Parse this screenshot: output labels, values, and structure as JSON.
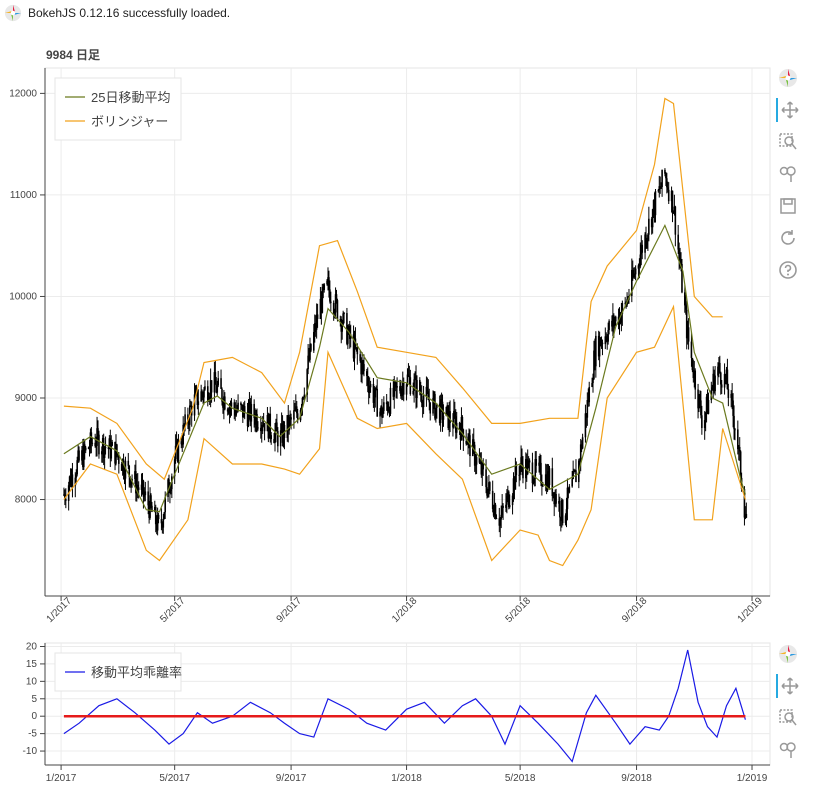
{
  "status": {
    "message": "BokehJS 0.12.16 successfully loaded."
  },
  "colors": {
    "ma": "#6b7a1f",
    "bollinger": "#f2a21c",
    "candle": "#000000",
    "deviation": "#1a1ae6",
    "zero": "#e61a1a"
  },
  "toolbar_main": [
    "bokeh-logo-icon",
    "pan-icon",
    "box-zoom-icon",
    "wheel-zoom-icon",
    "save-icon",
    "reset-icon",
    "help-icon"
  ],
  "toolbar_sub": [
    "bokeh-logo-icon",
    "pan-icon",
    "box-zoom-icon",
    "wheel-zoom-icon"
  ],
  "chart_data": [
    {
      "type": "line",
      "title": "9984 日足",
      "x_axis": "datetime",
      "xlim": [
        "2016-12-15",
        "2019-01-20"
      ],
      "ylim": [
        7050,
        12250
      ],
      "yticks": [
        8000,
        9000,
        10000,
        11000,
        12000
      ],
      "xticks": [
        "1/2017",
        "5/2017",
        "9/2017",
        "1/2018",
        "5/2018",
        "9/2018",
        "1/2019"
      ],
      "legend_position": "top-left",
      "series": [
        {
          "name": "25日移動平均",
          "kind": "moving-average",
          "points": [
            [
              "2017-01-04",
              8450
            ],
            [
              "2017-02-01",
              8620
            ],
            [
              "2017-03-01",
              8480
            ],
            [
              "2017-04-01",
              7900
            ],
            [
              "2017-04-15",
              7880
            ],
            [
              "2017-05-01",
              8250
            ],
            [
              "2017-06-01",
              8950
            ],
            [
              "2017-06-15",
              9020
            ],
            [
              "2017-07-01",
              8900
            ],
            [
              "2017-08-01",
              8800
            ],
            [
              "2017-08-20",
              8620
            ],
            [
              "2017-09-10",
              8800
            ],
            [
              "2017-10-01",
              9500
            ],
            [
              "2017-10-10",
              9880
            ],
            [
              "2017-11-01",
              9650
            ],
            [
              "2017-12-01",
              9200
            ],
            [
              "2018-01-01",
              9150
            ],
            [
              "2018-02-01",
              8950
            ],
            [
              "2018-03-01",
              8650
            ],
            [
              "2018-04-01",
              8250
            ],
            [
              "2018-05-01",
              8350
            ],
            [
              "2018-06-01",
              8100
            ],
            [
              "2018-07-01",
              8250
            ],
            [
              "2018-07-20",
              8900
            ],
            [
              "2018-08-10",
              9700
            ],
            [
              "2018-09-01",
              10150
            ],
            [
              "2018-10-01",
              10700
            ],
            [
              "2018-10-20",
              10250
            ],
            [
              "2018-11-01",
              9450
            ],
            [
              "2018-11-20",
              9000
            ],
            [
              "2018-12-01",
              8950
            ],
            [
              "2018-12-20",
              8200
            ],
            [
              "2018-12-25",
              8050
            ]
          ]
        },
        {
          "name": "ボリンジャー",
          "kind": "bollinger-upper",
          "points": [
            [
              "2017-01-04",
              8920
            ],
            [
              "2017-02-01",
              8900
            ],
            [
              "2017-03-01",
              8750
            ],
            [
              "2017-04-01",
              8350
            ],
            [
              "2017-04-20",
              8200
            ],
            [
              "2017-05-20",
              8900
            ],
            [
              "2017-06-01",
              9350
            ],
            [
              "2017-07-01",
              9400
            ],
            [
              "2017-08-01",
              9250
            ],
            [
              "2017-08-25",
              8950
            ],
            [
              "2017-09-10",
              9450
            ],
            [
              "2017-10-01",
              10500
            ],
            [
              "2017-10-20",
              10550
            ],
            [
              "2017-11-10",
              10050
            ],
            [
              "2017-12-01",
              9500
            ],
            [
              "2018-01-01",
              9450
            ],
            [
              "2018-02-01",
              9400
            ],
            [
              "2018-03-01",
              9100
            ],
            [
              "2018-04-01",
              8750
            ],
            [
              "2018-05-01",
              8750
            ],
            [
              "2018-06-01",
              8800
            ],
            [
              "2018-07-01",
              8800
            ],
            [
              "2018-07-15",
              9950
            ],
            [
              "2018-08-01",
              10300
            ],
            [
              "2018-09-01",
              10650
            ],
            [
              "2018-09-20",
              11300
            ],
            [
              "2018-10-01",
              11950
            ],
            [
              "2018-10-10",
              11900
            ],
            [
              "2018-11-01",
              10000
            ],
            [
              "2018-11-20",
              9800
            ],
            [
              "2018-12-01",
              9800
            ]
          ]
        },
        {
          "name": "ボリンジャー",
          "kind": "bollinger-lower",
          "points": [
            [
              "2017-01-04",
              8000
            ],
            [
              "2017-02-01",
              8350
            ],
            [
              "2017-03-01",
              8250
            ],
            [
              "2017-04-01",
              7500
            ],
            [
              "2017-04-15",
              7400
            ],
            [
              "2017-05-15",
              7800
            ],
            [
              "2017-06-01",
              8600
            ],
            [
              "2017-07-01",
              8350
            ],
            [
              "2017-08-01",
              8350
            ],
            [
              "2017-08-25",
              8300
            ],
            [
              "2017-09-10",
              8250
            ],
            [
              "2017-10-01",
              8500
            ],
            [
              "2017-10-10",
              9450
            ],
            [
              "2017-11-10",
              8800
            ],
            [
              "2017-12-01",
              8700
            ],
            [
              "2018-01-01",
              8750
            ],
            [
              "2018-02-01",
              8450
            ],
            [
              "2018-03-01",
              8200
            ],
            [
              "2018-04-01",
              7400
            ],
            [
              "2018-05-01",
              7700
            ],
            [
              "2018-05-20",
              7650
            ],
            [
              "2018-06-01",
              7400
            ],
            [
              "2018-06-15",
              7350
            ],
            [
              "2018-07-01",
              7600
            ],
            [
              "2018-07-15",
              7900
            ],
            [
              "2018-08-01",
              9000
            ],
            [
              "2018-09-01",
              9450
            ],
            [
              "2018-09-20",
              9500
            ],
            [
              "2018-10-10",
              9900
            ],
            [
              "2018-11-01",
              7800
            ],
            [
              "2018-11-20",
              7800
            ],
            [
              "2018-12-01",
              8700
            ],
            [
              "2018-12-25",
              8000
            ]
          ]
        }
      ],
      "candles": {
        "start": "2017-01-04",
        "end": "2018-12-26",
        "anchors": [
          [
            "2017-01-04",
            8050
          ],
          [
            "2017-01-15",
            8300
          ],
          [
            "2017-02-05",
            8600
          ],
          [
            "2017-03-01",
            8450
          ],
          [
            "2017-04-01",
            8000
          ],
          [
            "2017-04-15",
            7700
          ],
          [
            "2017-05-01",
            8400
          ],
          [
            "2017-05-20",
            8950
          ],
          [
            "2017-06-10",
            9150
          ],
          [
            "2017-07-01",
            8900
          ],
          [
            "2017-08-01",
            8800
          ],
          [
            "2017-08-20",
            8600
          ],
          [
            "2017-09-10",
            8900
          ],
          [
            "2017-10-01",
            9900
          ],
          [
            "2017-10-10",
            10100
          ],
          [
            "2017-11-01",
            9600
          ],
          [
            "2017-11-20",
            9200
          ],
          [
            "2017-12-05",
            8850
          ],
          [
            "2018-01-01",
            9200
          ],
          [
            "2018-02-01",
            8900
          ],
          [
            "2018-03-01",
            8700
          ],
          [
            "2018-03-20",
            8300
          ],
          [
            "2018-04-10",
            7800
          ],
          [
            "2018-05-01",
            8350
          ],
          [
            "2018-06-01",
            8200
          ],
          [
            "2018-06-15",
            7850
          ],
          [
            "2018-07-01",
            8300
          ],
          [
            "2018-07-20",
            9500
          ],
          [
            "2018-08-20",
            9900
          ],
          [
            "2018-09-01",
            10300
          ],
          [
            "2018-09-20",
            10900
          ],
          [
            "2018-10-01",
            11200
          ],
          [
            "2018-10-10",
            10900
          ],
          [
            "2018-10-25",
            9600
          ],
          [
            "2018-11-10",
            8750
          ],
          [
            "2018-11-25",
            9300
          ],
          [
            "2018-12-05",
            9150
          ],
          [
            "2018-12-15",
            8700
          ],
          [
            "2018-12-25",
            7850
          ]
        ]
      }
    },
    {
      "type": "line",
      "x_axis": "datetime",
      "xlim": [
        "2016-12-15",
        "2019-01-20"
      ],
      "ylim": [
        -14,
        21
      ],
      "yticks": [
        -10,
        -5,
        0,
        5,
        10,
        15,
        20
      ],
      "xticks": [
        "1/2017",
        "5/2017",
        "9/2017",
        "1/2018",
        "5/2018",
        "9/2018",
        "1/2019"
      ],
      "legend_position": "top-left",
      "series": [
        {
          "name": "移動平均乖離率",
          "kind": "deviation",
          "points": [
            [
              "2017-01-04",
              -5
            ],
            [
              "2017-01-20",
              -2
            ],
            [
              "2017-02-10",
              3
            ],
            [
              "2017-03-01",
              5
            ],
            [
              "2017-03-20",
              1
            ],
            [
              "2017-04-10",
              -4
            ],
            [
              "2017-04-25",
              -8
            ],
            [
              "2017-05-10",
              -5
            ],
            [
              "2017-05-25",
              1
            ],
            [
              "2017-06-10",
              -2
            ],
            [
              "2017-07-01",
              0
            ],
            [
              "2017-07-20",
              4
            ],
            [
              "2017-08-10",
              1
            ],
            [
              "2017-08-25",
              -2
            ],
            [
              "2017-09-10",
              -5
            ],
            [
              "2017-09-25",
              -6
            ],
            [
              "2017-10-10",
              5
            ],
            [
              "2017-11-01",
              2
            ],
            [
              "2017-11-20",
              -2
            ],
            [
              "2017-12-10",
              -4
            ],
            [
              "2018-01-01",
              2
            ],
            [
              "2018-01-20",
              4
            ],
            [
              "2018-02-10",
              -2
            ],
            [
              "2018-03-01",
              3
            ],
            [
              "2018-03-15",
              5
            ],
            [
              "2018-04-01",
              0
            ],
            [
              "2018-04-15",
              -8
            ],
            [
              "2018-05-01",
              3
            ],
            [
              "2018-05-20",
              -2
            ],
            [
              "2018-06-10",
              -8
            ],
            [
              "2018-06-25",
              -13
            ],
            [
              "2018-07-10",
              1
            ],
            [
              "2018-07-20",
              6
            ],
            [
              "2018-08-10",
              -2
            ],
            [
              "2018-08-25",
              -8
            ],
            [
              "2018-09-10",
              -3
            ],
            [
              "2018-09-25",
              -4
            ],
            [
              "2018-10-05",
              0
            ],
            [
              "2018-10-15",
              8
            ],
            [
              "2018-10-25",
              19
            ],
            [
              "2018-11-05",
              4
            ],
            [
              "2018-11-15",
              -3
            ],
            [
              "2018-11-25",
              -6
            ],
            [
              "2018-12-05",
              3
            ],
            [
              "2018-12-15",
              8
            ],
            [
              "2018-12-25",
              -1
            ]
          ]
        },
        {
          "name": "",
          "kind": "zero-line",
          "points": [
            [
              "2017-01-04",
              0
            ],
            [
              "2018-12-25",
              0
            ]
          ]
        }
      ]
    }
  ]
}
